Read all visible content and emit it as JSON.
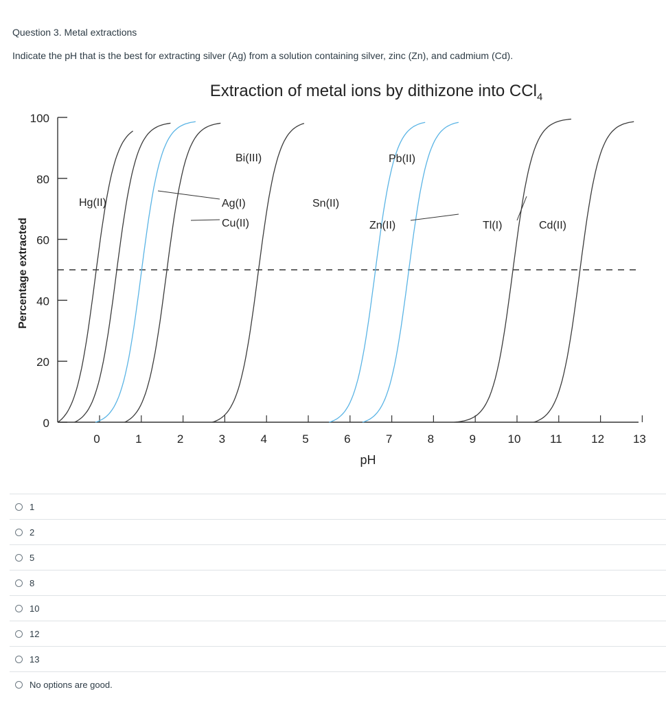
{
  "question": {
    "title": "Question 3. Metal extractions",
    "text": "Indicate the pH that is the best for extracting silver (Ag) from a solution containing silver, zinc (Zn), and cadmium (Cd)."
  },
  "chart_data": {
    "type": "line",
    "title": "Extraction of metal ions by dithizone into CCl",
    "title_subscript": "4",
    "xlabel": "pH",
    "ylabel": "Percentage extracted",
    "xlim": [
      -1.3,
      13.2
    ],
    "ylim": [
      0,
      100
    ],
    "x_ticks": [
      0,
      1,
      2,
      3,
      4,
      5,
      6,
      7,
      8,
      9,
      10,
      11,
      12,
      13
    ],
    "y_ticks": [
      0,
      20,
      40,
      60,
      80,
      100
    ],
    "reference_line": {
      "y": 50,
      "style": "dashed"
    },
    "grid": false,
    "series": [
      {
        "name": "Hg(II)",
        "ph50": -0.1,
        "color": "#3b3b3b",
        "x": [
          -1.0,
          -0.6,
          -0.1,
          0.4,
          0.8
        ],
        "y": [
          0,
          10,
          50,
          90,
          98
        ]
      },
      {
        "name": "Ag(I)",
        "ph50": 0.4,
        "color": "#3b3b3b",
        "x": [
          -0.6,
          -0.1,
          0.4,
          0.9,
          1.7
        ],
        "y": [
          0,
          10,
          50,
          90,
          98
        ]
      },
      {
        "name": "Cu(II)",
        "ph50": 1.0,
        "color": "#5ab4e5",
        "x": [
          -0.1,
          0.5,
          1.0,
          1.5,
          2.3
        ],
        "y": [
          0,
          10,
          50,
          90,
          98
        ]
      },
      {
        "name": "Bi(III)",
        "ph50": 1.6,
        "color": "#3b3b3b",
        "x": [
          0.6,
          1.1,
          1.6,
          2.1,
          2.9
        ],
        "y": [
          0,
          10,
          50,
          90,
          98
        ]
      },
      {
        "name": "Sn(II)",
        "ph50": 3.8,
        "color": "#3b3b3b",
        "x": [
          2.7,
          3.3,
          3.8,
          4.3,
          4.9
        ],
        "y": [
          0,
          10,
          50,
          90,
          98
        ]
      },
      {
        "name": "Pb(II)",
        "ph50": 6.6,
        "color": "#5ab4e5",
        "x": [
          5.5,
          6.1,
          6.6,
          7.1,
          7.8
        ],
        "y": [
          0,
          10,
          50,
          90,
          98
        ]
      },
      {
        "name": "Zn(II)",
        "ph50": 7.4,
        "color": "#5ab4e5",
        "x": [
          6.3,
          6.9,
          7.4,
          7.9,
          8.6
        ],
        "y": [
          0,
          10,
          50,
          90,
          98
        ]
      },
      {
        "name": "Tl(I)",
        "ph50": 9.9,
        "color": "#3b3b3b",
        "x": [
          8.5,
          9.3,
          9.9,
          10.5,
          11.3
        ],
        "y": [
          0,
          10,
          50,
          90,
          98
        ]
      },
      {
        "name": "Cd(II)",
        "ph50": 11.5,
        "color": "#3b3b3b",
        "x": [
          10.4,
          11.0,
          11.5,
          12.0,
          12.8
        ],
        "y": [
          0,
          10,
          50,
          90,
          98
        ]
      }
    ],
    "labels": [
      {
        "text": "Hg(II)",
        "color": "#222222"
      },
      {
        "text": "Bi(III)",
        "color": "#222222"
      },
      {
        "text": "Ag(I)",
        "color": "#222222"
      },
      {
        "text": "Cu(II)",
        "color": "#4aa8dd"
      },
      {
        "text": "Sn(II)",
        "color": "#222222"
      },
      {
        "text": "Pb(II)",
        "color": "#4aa8dd"
      },
      {
        "text": "Zn(II)",
        "color": "#4aa8dd"
      },
      {
        "text": "Tl(I)",
        "color": "#222222"
      },
      {
        "text": "Cd(II)",
        "color": "#222222"
      }
    ]
  },
  "options": [
    {
      "label": "1"
    },
    {
      "label": "2"
    },
    {
      "label": "5"
    },
    {
      "label": "8"
    },
    {
      "label": "10"
    },
    {
      "label": "12"
    },
    {
      "label": "13"
    },
    {
      "label": "No options are good."
    }
  ]
}
